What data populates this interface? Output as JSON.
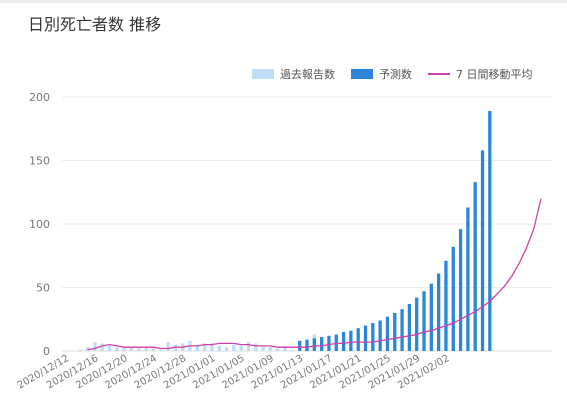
{
  "header": {
    "title": "日別死亡者数 推移"
  },
  "colors": {
    "past": "#bcdcf7",
    "forecast": "#2b86d9",
    "avg": "#cf3fa8",
    "grid": "#ececec",
    "tick": "#777777"
  },
  "chart_data": {
    "type": "bar",
    "title": "日別死亡者数 推移",
    "xlabel": "",
    "ylabel": "",
    "ylim": [
      0,
      200
    ],
    "yticks": [
      0,
      50,
      100,
      150,
      200
    ],
    "grid": true,
    "legend_position": "top-right",
    "legend": {
      "past_label": "過去報告数",
      "forecast_label": "予測数",
      "avg_label": "7 日間移動平均"
    },
    "x_tick_labels": [
      "2020/12/12",
      "2020/12/16",
      "2020/12/20",
      "2020/12/24",
      "2020/12/28",
      "2021/01/01",
      "2021/01/05",
      "2021/01/09",
      "2021/01/13",
      "2021/01/17",
      "2021/01/21",
      "2021/01/25",
      "2021/01/29",
      "2021/02/02"
    ],
    "series": [
      {
        "name": "過去報告数",
        "start_date": "2020/12/12",
        "values": [
          0,
          0,
          1,
          3,
          7,
          6,
          4,
          3,
          3,
          3,
          2,
          3,
          2,
          1,
          7,
          5,
          6,
          8,
          5,
          6,
          6,
          4,
          3,
          5,
          4,
          7,
          6,
          3,
          3,
          2,
          4,
          1,
          3,
          2,
          13,
          4,
          5,
          2,
          9,
          6
        ]
      },
      {
        "name": "予測数",
        "start_date": "2021/01/13",
        "values": [
          8,
          9,
          10,
          11,
          12,
          13,
          15,
          16,
          18,
          20,
          22,
          24,
          27,
          30,
          33,
          37,
          42,
          47,
          53,
          61,
          71,
          82,
          96,
          113,
          133,
          158,
          189
        ]
      },
      {
        "name": "7 日間移動平均",
        "start_date": "2020/12/15",
        "values": [
          1,
          2,
          4,
          5,
          4,
          3,
          3,
          3,
          3,
          3,
          2,
          2,
          3,
          3,
          4,
          4,
          5,
          5,
          6,
          6,
          6,
          5,
          5,
          4,
          4,
          4,
          3,
          3,
          3,
          3,
          3,
          4,
          4,
          5,
          6,
          6,
          7,
          7,
          7,
          7,
          8,
          9,
          10,
          11,
          12,
          13,
          15,
          16,
          18,
          20,
          22,
          25,
          28,
          31,
          35,
          39,
          45,
          51,
          59,
          69,
          81,
          96,
          120
        ]
      }
    ]
  }
}
